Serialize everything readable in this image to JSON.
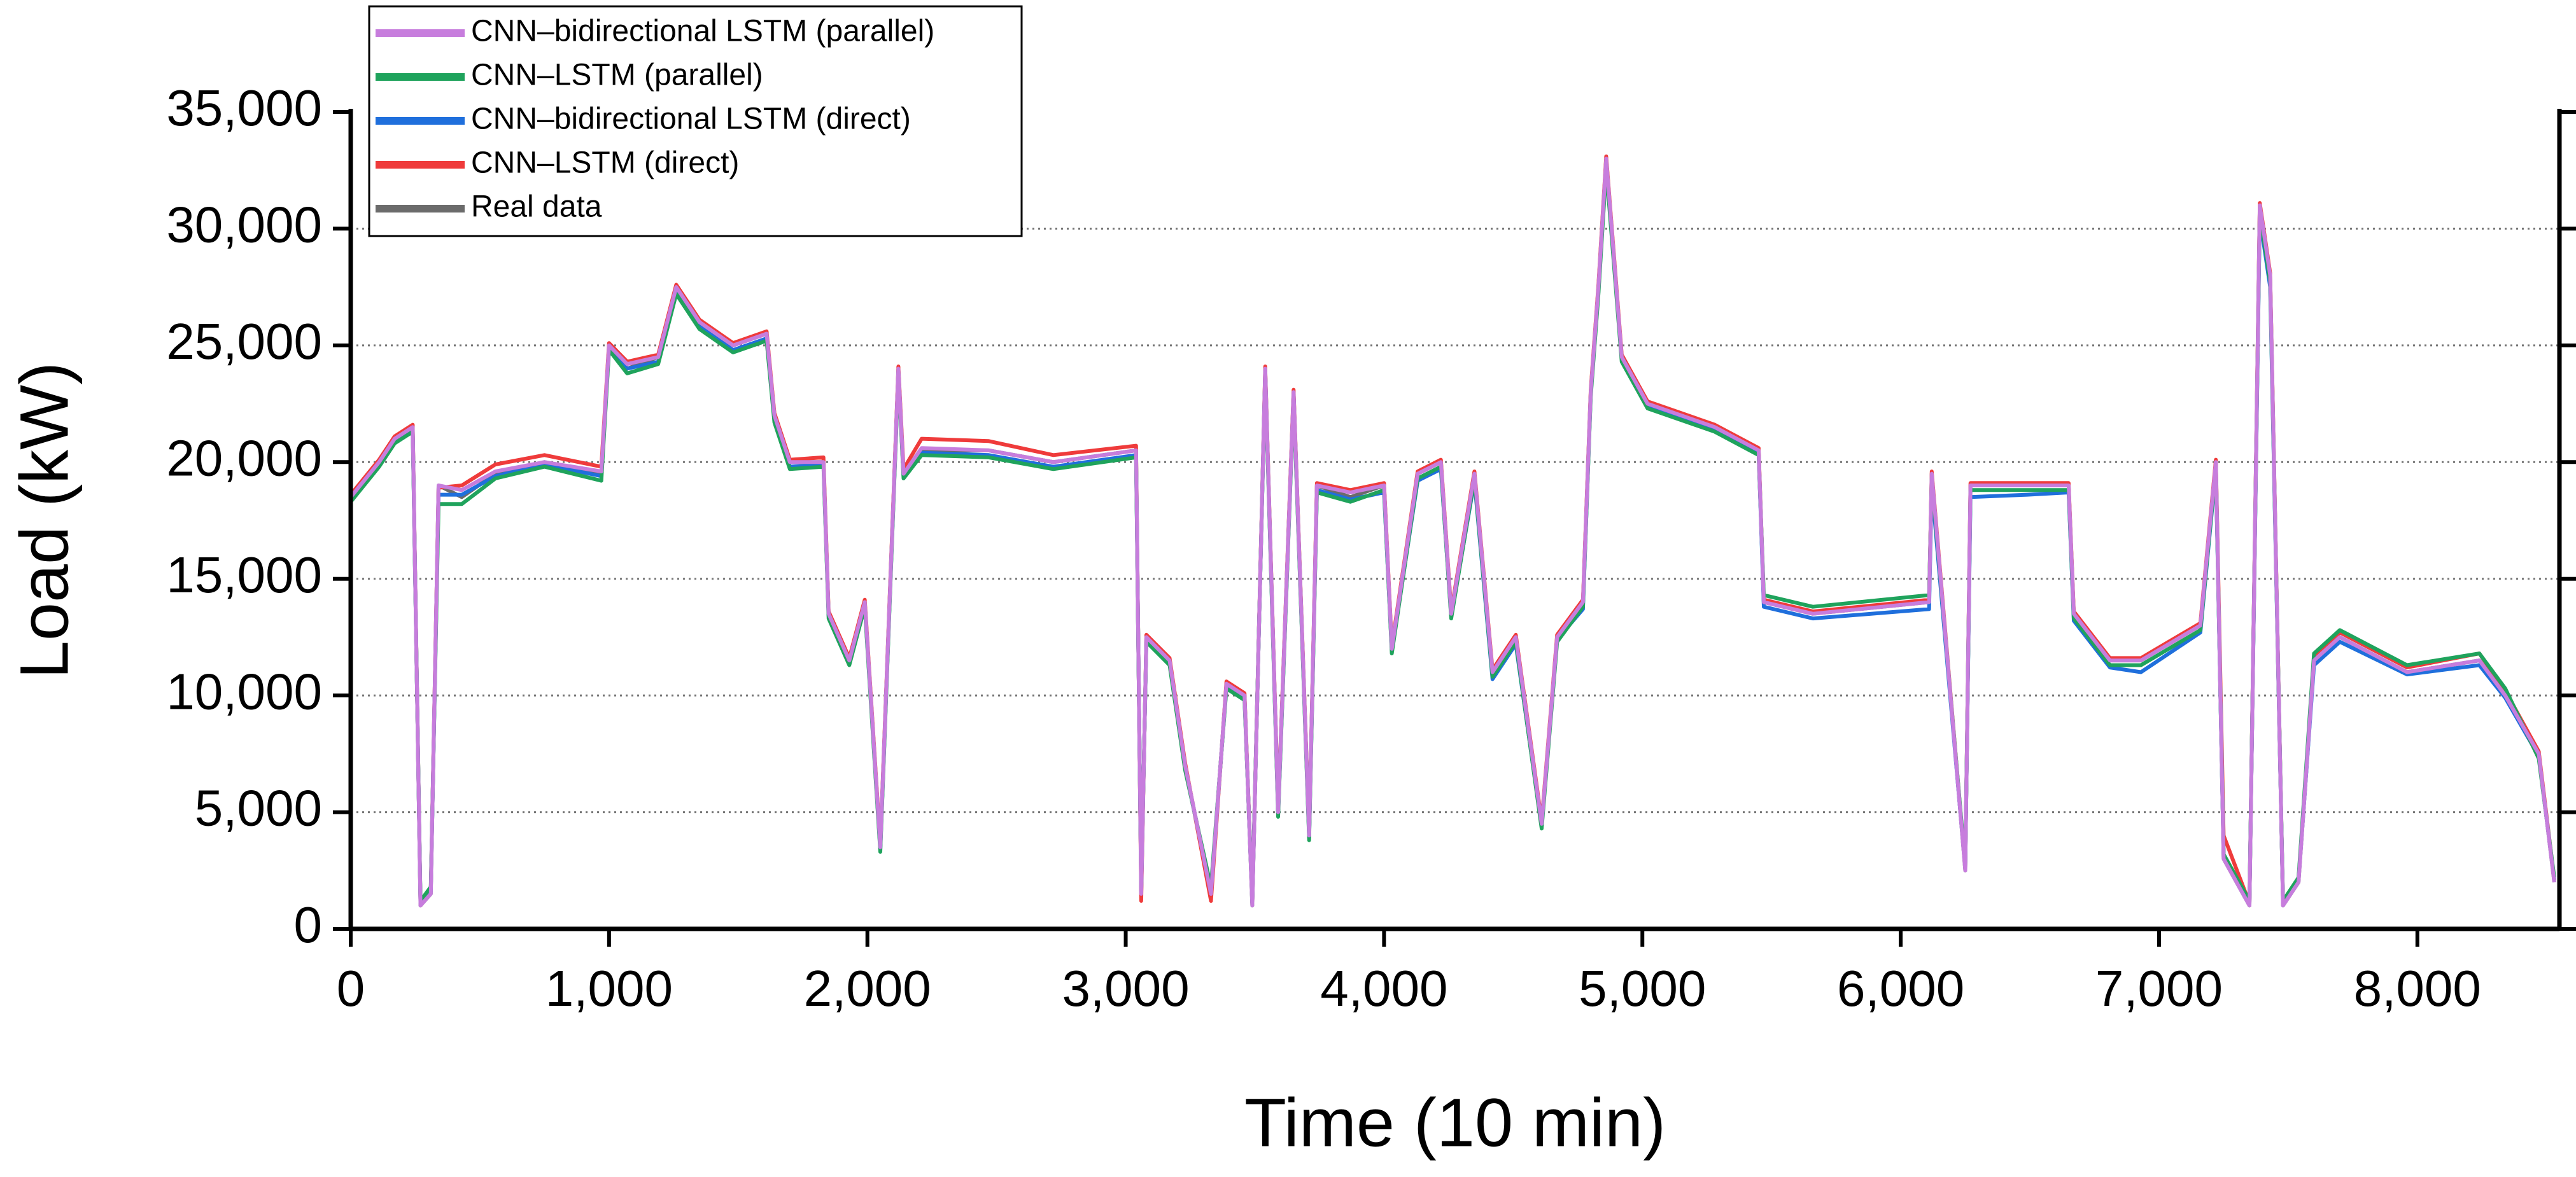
{
  "chart_data": {
    "type": "line",
    "xlabel": "Time (10 min)",
    "ylabel": "Load (kW)",
    "x": [
      0,
      110,
      170,
      240,
      270,
      310,
      340,
      430,
      560,
      750,
      970,
      1000,
      1070,
      1190,
      1260,
      1350,
      1480,
      1610,
      1640,
      1700,
      1830,
      1850,
      1930,
      1990,
      2050,
      2120,
      2140,
      2210,
      2470,
      2720,
      3040,
      3060,
      3080,
      3170,
      3230,
      3330,
      3390,
      3460,
      3490,
      3540,
      3590,
      3650,
      3710,
      3740,
      3870,
      4000,
      4030,
      4130,
      4220,
      4260,
      4350,
      4420,
      4510,
      4610,
      4670,
      4770,
      4800,
      4830,
      4860,
      4920,
      5020,
      5280,
      5450,
      5470,
      5660,
      6110,
      6120,
      6250,
      6270,
      6490,
      6650,
      6670,
      6810,
      6930,
      7160,
      7220,
      7250,
      7350,
      7390,
      7430,
      7480,
      7540,
      7600,
      7700,
      7960,
      8240,
      8340,
      8470,
      8530
    ],
    "series": [
      {
        "name": "CNN–bidirectional LSTM (parallel)",
        "color": "#c77ddd",
        "values": [
          18500,
          20000,
          21000,
          21500,
          1000,
          1500,
          19000,
          18800,
          19600,
          20000,
          19600,
          25000,
          24200,
          24500,
          27500,
          26000,
          25000,
          25500,
          22000,
          20000,
          20000,
          13500,
          11500,
          14000,
          3500,
          24000,
          19500,
          20600,
          20500,
          20000,
          20500,
          1500,
          12500,
          11500,
          7000,
          1500,
          10500,
          10000,
          1000,
          24000,
          5000,
          23000,
          4000,
          19000,
          18700,
          19000,
          12000,
          19500,
          20000,
          13500,
          19500,
          11000,
          12500,
          4500,
          12500,
          14000,
          23000,
          27500,
          33000,
          24500,
          22500,
          21500,
          20500,
          14000,
          13500,
          14000,
          19500,
          2500,
          19000,
          19000,
          19000,
          13500,
          11500,
          11500,
          13000,
          20000,
          3000,
          1000,
          31000,
          28000,
          1000,
          2000,
          11500,
          12500,
          11000,
          11500,
          10000,
          7500,
          2000
        ]
      },
      {
        "name": "CNN–LSTM (parallel)",
        "color": "#1fa35c",
        "values": [
          18300,
          19800,
          20800,
          21300,
          1200,
          1800,
          18200,
          18200,
          19300,
          19800,
          19200,
          24800,
          23800,
          24200,
          27200,
          25700,
          24700,
          25200,
          21700,
          19700,
          19800,
          13300,
          11300,
          13800,
          3300,
          23800,
          19300,
          20300,
          20200,
          19700,
          20200,
          1800,
          12300,
          11300,
          6800,
          1800,
          10300,
          9800,
          1200,
          23800,
          4800,
          22800,
          3800,
          18700,
          18300,
          18800,
          11800,
          19300,
          19800,
          13300,
          19300,
          10800,
          12300,
          4300,
          12300,
          13800,
          22800,
          27200,
          32600,
          24300,
          22300,
          21300,
          20300,
          14300,
          13800,
          14300,
          19300,
          2700,
          18800,
          18800,
          18800,
          13300,
          11300,
          11300,
          12800,
          19800,
          3200,
          1200,
          30700,
          27700,
          1200,
          2200,
          11800,
          12800,
          11300,
          11800,
          10300,
          7300,
          2200
        ]
      },
      {
        "name": "CNN–bidirectional LSTM (direct)",
        "color": "#1f6fdc",
        "values": [
          18400,
          19900,
          20900,
          21400,
          1100,
          1600,
          18600,
          18600,
          19400,
          19900,
          19400,
          24900,
          24000,
          24300,
          27300,
          25800,
          24800,
          25300,
          21800,
          19800,
          19900,
          13400,
          11400,
          13900,
          3400,
          23900,
          19400,
          20400,
          20300,
          19800,
          20300,
          1600,
          12400,
          11400,
          6900,
          1600,
          10400,
          9900,
          1100,
          23900,
          4900,
          22900,
          3900,
          18800,
          18400,
          18700,
          11900,
          19200,
          19700,
          13400,
          19200,
          10700,
          12200,
          4400,
          12400,
          13700,
          22900,
          27300,
          32800,
          24400,
          22400,
          21400,
          20400,
          13800,
          13300,
          13700,
          19000,
          2600,
          18500,
          18600,
          18700,
          13200,
          11200,
          11000,
          12700,
          19700,
          3100,
          1100,
          30500,
          27500,
          1100,
          2100,
          11300,
          12300,
          10900,
          11300,
          9900,
          7400,
          2100
        ]
      },
      {
        "name": "CNN–LSTM (direct)",
        "color": "#ef3b3b",
        "values": [
          18600,
          20100,
          21100,
          21600,
          1100,
          1700,
          18900,
          19000,
          19900,
          20300,
          19800,
          25100,
          24300,
          24600,
          27600,
          26100,
          25100,
          25600,
          22100,
          20100,
          20200,
          13600,
          11600,
          14100,
          3600,
          24100,
          19700,
          21000,
          20900,
          20300,
          20700,
          1200,
          12600,
          11600,
          7100,
          1200,
          10600,
          10100,
          1100,
          24100,
          5100,
          23100,
          4100,
          19100,
          18800,
          19100,
          12100,
          19600,
          20100,
          13600,
          19600,
          11100,
          12600,
          4600,
          12600,
          14100,
          23100,
          27600,
          33100,
          24600,
          22600,
          21600,
          20600,
          14100,
          13600,
          14100,
          19600,
          2600,
          19100,
          19100,
          19100,
          13600,
          11600,
          11600,
          13100,
          20100,
          4000,
          1100,
          31100,
          28100,
          1100,
          2100,
          11600,
          12700,
          11200,
          11800,
          10200,
          7600,
          2100
        ]
      },
      {
        "name": "Real data",
        "color": "#6b6b6b",
        "values": [
          18500,
          20000,
          21000,
          21500,
          1000,
          1500,
          19000,
          18500,
          19500,
          20000,
          19500,
          25000,
          24000,
          24500,
          27500,
          26000,
          25000,
          25500,
          22000,
          20000,
          20000,
          13500,
          11500,
          14000,
          3500,
          24000,
          19500,
          20500,
          20500,
          20000,
          20500,
          1500,
          12500,
          11500,
          7000,
          1500,
          10500,
          10000,
          1000,
          24000,
          5000,
          23000,
          4000,
          19000,
          18500,
          19000,
          12000,
          19500,
          20000,
          13500,
          19500,
          11000,
          12500,
          4500,
          12500,
          14000,
          23000,
          27500,
          33000,
          24500,
          22500,
          21500,
          20500,
          14000,
          13500,
          14000,
          19500,
          2500,
          19000,
          19000,
          19000,
          13500,
          11500,
          11500,
          13000,
          20000,
          3000,
          1000,
          31000,
          28000,
          1000,
          2000,
          11500,
          12500,
          11000,
          11500,
          10000,
          7500,
          2000
        ]
      }
    ],
    "xlim": [
      0,
      8550
    ],
    "xticks": [
      0,
      {
        "value": 1000,
        "label": "1,000"
      },
      {
        "value": 2000,
        "label": "2,000"
      },
      {
        "value": 3000,
        "label": "3,000"
      },
      {
        "value": 4000,
        "label": "4,000"
      },
      {
        "value": 5000,
        "label": "5,000"
      },
      {
        "value": 6000,
        "label": "6,000"
      },
      {
        "value": 7000,
        "label": "7,000"
      },
      {
        "value": 8000,
        "label": "8,000"
      }
    ],
    "ylim": [
      0,
      35000
    ],
    "yticks": [
      0,
      {
        "value": 5000,
        "label": "5,000"
      },
      {
        "value": 10000,
        "label": "10,000"
      },
      {
        "value": 15000,
        "label": "15,000"
      },
      {
        "value": 20000,
        "label": "20,000"
      },
      {
        "value": 25000,
        "label": "25,000"
      },
      {
        "value": 30000,
        "label": "30,000"
      },
      {
        "value": 35000,
        "label": "35,000"
      }
    ],
    "grid": true,
    "legend": "upper left"
  }
}
